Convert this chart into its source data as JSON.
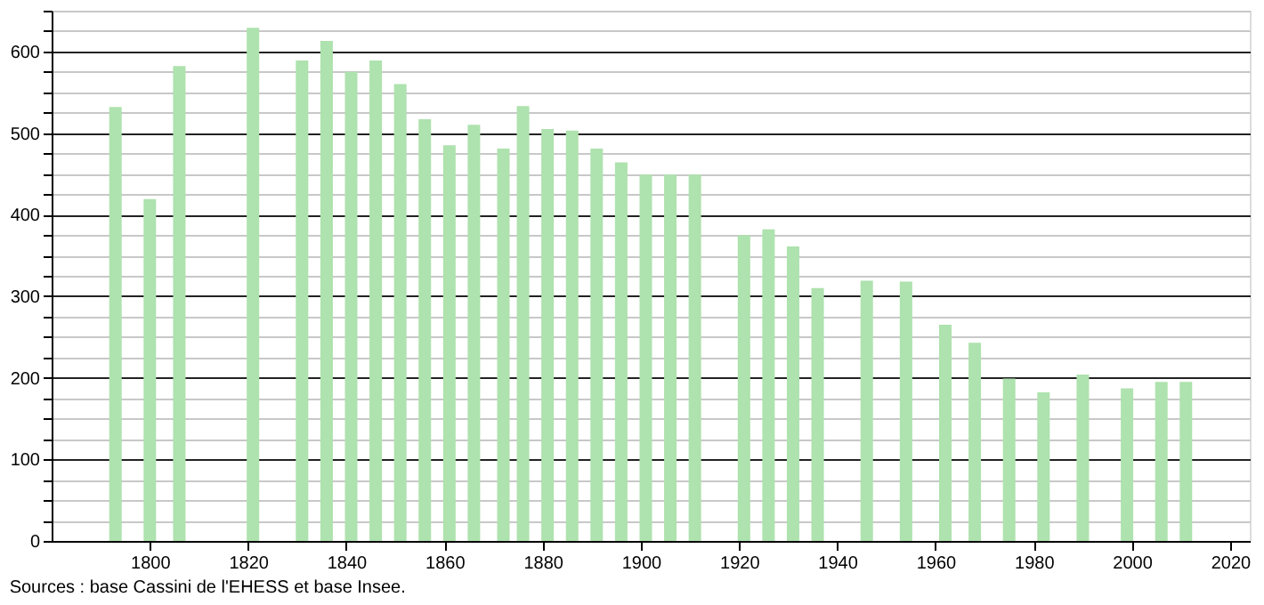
{
  "chart_data": {
    "type": "bar",
    "x": [
      1793,
      1800,
      1806,
      1821,
      1831,
      1836,
      1841,
      1846,
      1851,
      1856,
      1861,
      1866,
      1872,
      1876,
      1881,
      1886,
      1891,
      1896,
      1901,
      1906,
      1911,
      1921,
      1926,
      1931,
      1936,
      1946,
      1954,
      1962,
      1968,
      1975,
      1982,
      1990,
      1999,
      2006,
      2011
    ],
    "values": [
      532,
      419,
      582,
      629,
      589,
      613,
      575,
      589,
      560,
      517,
      485,
      510,
      481,
      533,
      505,
      503,
      481,
      464,
      449,
      449,
      449,
      375,
      382,
      361,
      310,
      319,
      318,
      265,
      243,
      199,
      182,
      204,
      187,
      195,
      195
    ],
    "color": "#aee2ae",
    "xlim": [
      1780,
      2024
    ],
    "xticks": [
      1800,
      1820,
      1840,
      1860,
      1880,
      1900,
      1920,
      1940,
      1960,
      1980,
      2000,
      2020
    ],
    "ylim": [
      0,
      650
    ],
    "yticks": [
      0,
      {
        "value": 25,
        "label": null
      },
      {
        "value": 50,
        "label": null
      },
      {
        "value": 75,
        "label": null
      },
      100,
      {
        "value": 125,
        "label": null
      },
      {
        "value": 150,
        "label": null
      },
      {
        "value": 175,
        "label": null
      },
      200,
      {
        "value": 225,
        "label": null
      },
      {
        "value": 250,
        "label": null
      },
      {
        "value": 275,
        "label": null
      },
      300,
      {
        "value": 325,
        "label": null
      },
      {
        "value": 350,
        "label": null
      },
      {
        "value": 375,
        "label": null
      },
      400,
      {
        "value": 425,
        "label": null
      },
      {
        "value": 450,
        "label": null
      },
      {
        "value": 475,
        "label": null
      },
      500,
      {
        "value": 525,
        "label": null
      },
      {
        "value": 550,
        "label": null
      },
      {
        "value": 575,
        "label": null
      },
      600,
      {
        "value": 625,
        "label": null
      },
      {
        "value": 650,
        "label": null
      }
    ],
    "grid": "y",
    "annotations": [
      "Sources : base Cassini de l'EHESS et base Insee."
    ]
  }
}
